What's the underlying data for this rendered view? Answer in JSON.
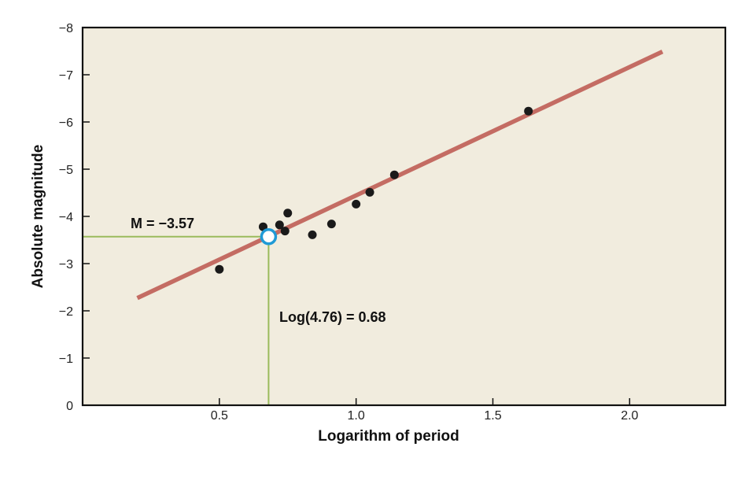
{
  "chart_data": {
    "type": "scatter",
    "xlabel": "Logarithm of period",
    "ylabel": "Absolute magnitude",
    "xlim": [
      0,
      2.35
    ],
    "ylim": [
      0,
      -8
    ],
    "y_axis_inverted": true,
    "x_ticks": [
      0.5,
      1.0,
      1.5,
      2.0
    ],
    "x_tick_labels": [
      "0.5",
      "1.0",
      "1.5",
      "2.0"
    ],
    "y_ticks": [
      0,
      -1,
      -2,
      -3,
      -4,
      -5,
      -6,
      -7,
      -8
    ],
    "y_tick_labels": [
      "0",
      "−1",
      "−2",
      "−3",
      "−4",
      "−5",
      "−6",
      "−7",
      "−8"
    ],
    "grid": false,
    "background_color": "#f1ecde",
    "points": [
      {
        "x": 0.5,
        "y": -2.88
      },
      {
        "x": 0.66,
        "y": -3.78
      },
      {
        "x": 0.72,
        "y": -3.82
      },
      {
        "x": 0.74,
        "y": -3.69
      },
      {
        "x": 0.75,
        "y": -4.07
      },
      {
        "x": 0.84,
        "y": -3.61
      },
      {
        "x": 0.91,
        "y": -3.84
      },
      {
        "x": 1.0,
        "y": -4.26
      },
      {
        "x": 1.05,
        "y": -4.51
      },
      {
        "x": 1.14,
        "y": -4.88
      },
      {
        "x": 1.63,
        "y": -6.23
      }
    ],
    "point_color": "#1a1a1a",
    "fit_line": {
      "x": [
        0.2,
        2.12
      ],
      "y": [
        -2.27,
        -7.49
      ],
      "color": "#c46c63"
    },
    "highlight": {
      "x": 0.68,
      "y": -3.57,
      "color": "#1f9ad6"
    },
    "guide_color": "#9bbb5c",
    "annotations": {
      "magnitude": "M = −3.57",
      "period": "Log(4.76) = 0.68"
    }
  }
}
